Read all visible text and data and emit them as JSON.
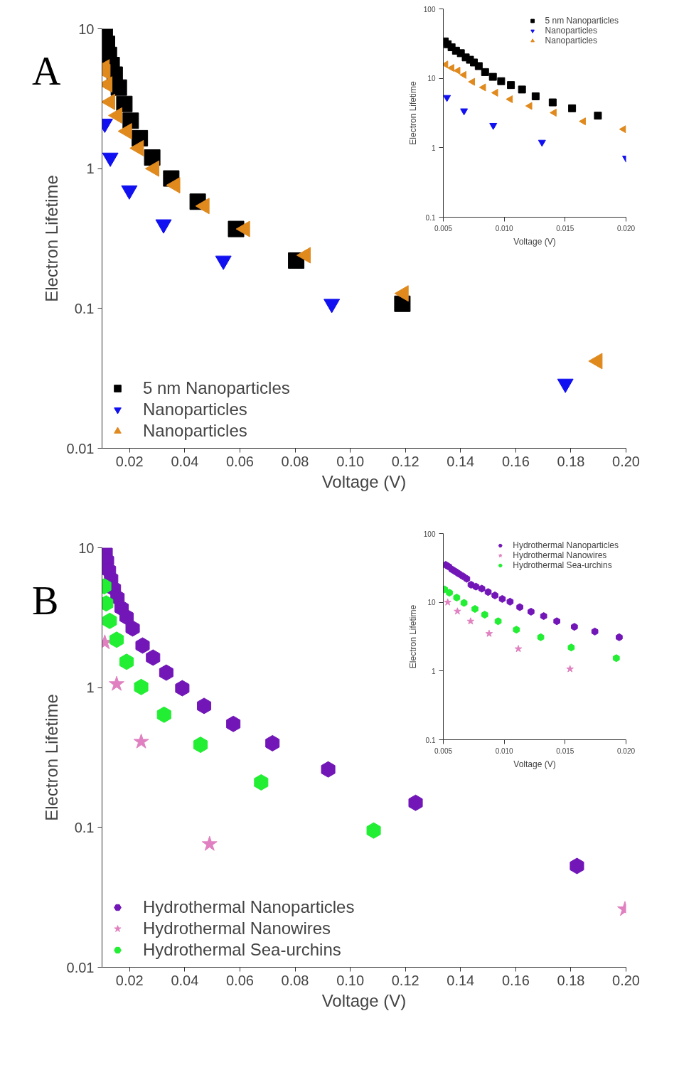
{
  "chart_data": [
    {
      "type": "scatter",
      "xlabel": "Voltage (V)",
      "ylabel": "Electron Lifetime",
      "annotations": [
        "A"
      ],
      "log": "y",
      "grid": false,
      "legend": "bottom left",
      "xlim": [
        0.01,
        0.2
      ],
      "ylim": [
        0.01,
        10
      ],
      "xticks": [
        0.02,
        0.04,
        0.06,
        0.08,
        {
          "value": 0.1,
          "label": "0.10"
        },
        0.12,
        0.14,
        0.16,
        0.18,
        {
          "value": 0.2,
          "label": "0.20"
        }
      ],
      "yticks": [
        0.01,
        0.1,
        1,
        10
      ],
      "series": [
        {
          "name": "5 nm Nanoparticles",
          "color": "#000000",
          "marker": "square",
          "x": [
            0.011,
            0.0118,
            0.0125,
            0.0135,
            0.0146,
            0.0161,
            0.0181,
            0.0204,
            0.0237,
            0.0282,
            0.0351,
            0.0447,
            0.0586,
            0.0804,
            0.1189
          ],
          "values": [
            9.1,
            7.8,
            6.5,
            5.5,
            4.7,
            3.8,
            2.9,
            2.2,
            1.65,
            1.2,
            0.85,
            0.58,
            0.37,
            0.22,
            0.108
          ]
        },
        {
          "name": "Nanoparticles",
          "color": "#1010f0",
          "marker": "triangle_down",
          "x": [
            0.011,
            0.013,
            0.0199,
            0.0323,
            0.054,
            0.0933,
            0.178
          ],
          "values": [
            2.1,
            1.2,
            0.7,
            0.4,
            0.22,
            0.108,
            0.029
          ]
        },
        {
          "name": "Nanoparticles",
          "color": "#e08a1e",
          "marker": "triangle_left",
          "x": [
            0.011,
            0.0113,
            0.012,
            0.013,
            0.0156,
            0.0191,
            0.0234,
            0.029,
            0.0366,
            0.0472,
            0.0619,
            0.0839,
            0.1194,
            0.1897
          ],
          "values": [
            5.3,
            4.9,
            4.0,
            3.0,
            2.4,
            1.85,
            1.4,
            1.0,
            0.76,
            0.54,
            0.37,
            0.24,
            0.128,
            0.042
          ]
        }
      ]
    },
    {
      "type": "scatter",
      "xlabel": "Voltage (V)",
      "ylabel": "Electron Lifetime",
      "log": "y",
      "grid": false,
      "legend": "top right",
      "xlim": [
        0.005,
        0.02
      ],
      "ylim": [
        0.1,
        100
      ],
      "xticks": [
        {
          "value": 0.005,
          "label": "0.005"
        },
        {
          "value": 0.01,
          "label": "0.010"
        },
        {
          "value": 0.015,
          "label": "0.015"
        },
        {
          "value": 0.02,
          "label": "0.020"
        }
      ],
      "yticks": [
        0.1,
        1,
        10,
        100
      ],
      "series": [
        {
          "name": "5 nm Nanoparticles",
          "color": "#000000",
          "marker": "square",
          "x": [
            0.00512,
            0.00536,
            0.00568,
            0.00604,
            0.00644,
            0.00684,
            0.00719,
            0.00751,
            0.00791,
            0.00843,
            0.00907,
            0.00975,
            0.01055,
            0.01146,
            0.01258,
            0.01398,
            0.01557,
            0.01769
          ],
          "values": [
            34,
            31,
            28,
            25,
            23,
            20,
            18.5,
            16.9,
            15,
            12.3,
            10.5,
            9.1,
            8.0,
            6.9,
            5.5,
            4.5,
            3.7,
            2.9
          ]
        },
        {
          "name": "Nanoparticles",
          "color": "#1010f0",
          "marker": "triangle_down",
          "x": [
            0.0053,
            0.0067,
            0.0091,
            0.0131,
            0.02
          ],
          "values": [
            5.3,
            3.4,
            2.1,
            1.2,
            0.71
          ]
        },
        {
          "name": "Nanoparticles",
          "color": "#e08a1e",
          "marker": "triangle_left",
          "x": [
            0.0052,
            0.0057,
            0.0062,
            0.0067,
            0.0074,
            0.0083,
            0.0093,
            0.0105,
            0.0121,
            0.0141,
            0.0165,
            0.0198
          ],
          "values": [
            15.8,
            14.1,
            12.9,
            11.2,
            8.9,
            7.4,
            6.2,
            5.0,
            4.0,
            3.2,
            2.4,
            1.85
          ]
        }
      ]
    },
    {
      "type": "scatter",
      "xlabel": "Voltage (V)",
      "ylabel": "Electron Lifetime",
      "annotations": [
        "B"
      ],
      "log": "y",
      "grid": false,
      "legend": "bottom left",
      "xlim": [
        0.01,
        0.2
      ],
      "ylim": [
        0.01,
        10
      ],
      "xticks": [
        0.02,
        0.04,
        0.06,
        0.08,
        {
          "value": 0.1,
          "label": "0.10"
        },
        0.12,
        0.14,
        0.16,
        0.18,
        {
          "value": 0.2,
          "label": "0.20"
        }
      ],
      "yticks": [
        0.01,
        0.1,
        1,
        10
      ],
      "series": [
        {
          "name": "Hydrothermal Nanoparticles",
          "color": "#7216b8",
          "x": [
            0.0113,
            0.0118,
            0.0125,
            0.0133,
            0.0143,
            0.0156,
            0.0171,
            0.0189,
            0.0211,
            0.0247,
            0.0285,
            0.0333,
            0.0391,
            0.047,
            0.0576,
            0.0718,
            0.092,
            0.1237,
            0.1822
          ],
          "values": [
            9.3,
            8.1,
            6.9,
            6.0,
            5.1,
            4.4,
            3.7,
            3.2,
            2.65,
            2.0,
            1.64,
            1.28,
            0.99,
            0.74,
            0.55,
            0.4,
            0.26,
            0.15,
            0.053
          ]
        },
        {
          "name": "Hydrothermal Nanowires",
          "color": "#e080c0",
          "marker": "star",
          "x": [
            0.011,
            0.0153,
            0.0242,
            0.049,
            0.1996
          ],
          "values": [
            2.1,
            1.06,
            0.41,
            0.076,
            0.026
          ]
        },
        {
          "name": "Hydrothermal Sea-urchins",
          "color": "#22ee33",
          "x": [
            0.0108,
            0.0115,
            0.0128,
            0.0153,
            0.0189,
            0.0242,
            0.0325,
            0.0457,
            0.0677,
            0.1085
          ],
          "values": [
            5.3,
            4.0,
            3.0,
            2.2,
            1.53,
            1.01,
            0.64,
            0.39,
            0.21,
            0.095
          ]
        }
      ]
    },
    {
      "type": "scatter",
      "xlabel": "Voltage (V)",
      "ylabel": "Electron Lifetime",
      "log": "y",
      "grid": false,
      "legend": "top right",
      "xlim": [
        0.005,
        0.02
      ],
      "ylim": [
        0.1,
        100
      ],
      "xticks": [
        {
          "value": 0.005,
          "label": "0.005"
        },
        {
          "value": 0.01,
          "label": "0.010"
        },
        {
          "value": 0.015,
          "label": "0.015"
        },
        {
          "value": 0.02,
          "label": "0.020"
        }
      ],
      "yticks": [
        0.1,
        1,
        10,
        100
      ],
      "series": [
        {
          "name": "Hydrothermal Nanoparticles",
          "color": "#7216b8",
          "x": [
            0.0052,
            0.00544,
            0.00572,
            0.006,
            0.00628,
            0.0066,
            0.00692,
            0.00728,
            0.00768,
            0.00816,
            0.00868,
            0.00924,
            0.00984,
            0.01048,
            0.01128,
            0.0122,
            0.01324,
            0.01432,
            0.01576,
            0.01744,
            0.01944
          ],
          "values": [
            35,
            33,
            30,
            28,
            26,
            24,
            22,
            18,
            16.9,
            15.8,
            14.1,
            12.6,
            11.2,
            10.2,
            8.5,
            7.3,
            6.3,
            5.3,
            4.4,
            3.75,
            3.1
          ]
        },
        {
          "name": "Hydrothermal Nanowires",
          "color": "#e080c0",
          "marker": "star",
          "x": [
            0.00536,
            0.00616,
            0.00724,
            0.00876,
            0.01116,
            0.0154
          ],
          "values": [
            10,
            7.4,
            5.3,
            3.5,
            2.1,
            1.07
          ]
        },
        {
          "name": "Hydrothermal Sea-urchins",
          "color": "#22ee33",
          "x": [
            0.0051,
            0.0055,
            0.0061,
            0.0067,
            0.0076,
            0.0084,
            0.0095,
            0.011,
            0.013,
            0.0155,
            0.0192
          ],
          "values": [
            15.4,
            13.8,
            11.7,
            9.8,
            8.0,
            6.6,
            5.3,
            4.0,
            3.1,
            2.2,
            1.54
          ]
        }
      ]
    }
  ]
}
